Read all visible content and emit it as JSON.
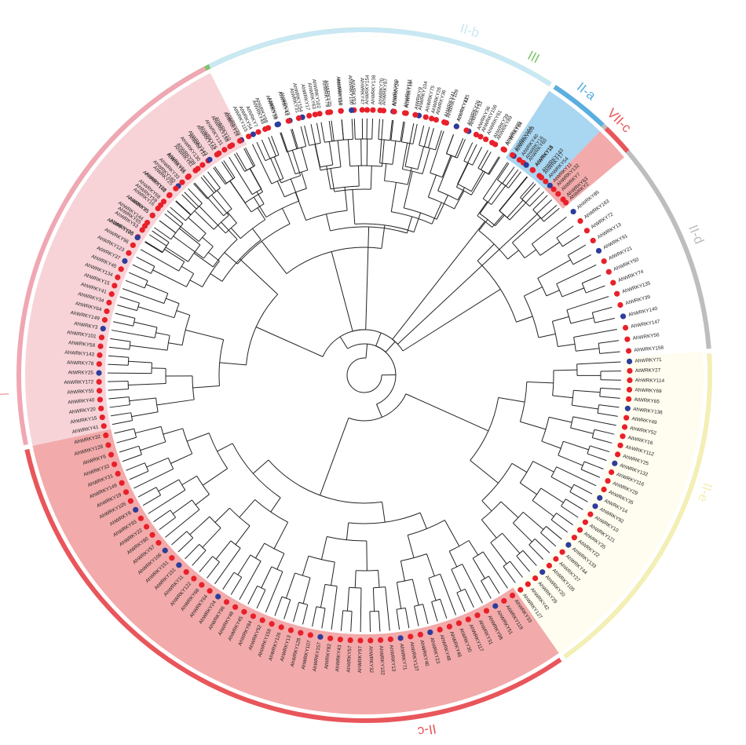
{
  "colors": {
    "species_marker_red": "#e8202a",
    "species_marker_blue": "#2d3d9a",
    "branch": "#222222"
  },
  "clades": [
    {
      "id": "III",
      "label": "III",
      "color": "#7dc46a",
      "fill": "#c9e6be",
      "leaves": [
        "AhWRKY96",
        "AhWRKY65",
        "AhWRKY35",
        "AhWRKY59",
        "AhWRKY162",
        "AhWRKY160",
        "AtWRKY55",
        "AhWRKY99",
        "AhWRKY12",
        "AhWRKY76",
        "AhWRKY158",
        "AtWRKY70",
        "AtWRKY54",
        "AtWRKY46",
        "AtWRKY38",
        "AhWRKY2",
        "AhWRKY154",
        "AhWRKY63",
        "AhWRKY79",
        "AhWRKY110",
        "AtWRKY53",
        "AhWRKY154",
        "AhWRKY70",
        "AhWRKY69",
        "AhWRKY19",
        "AhWRKY104",
        "AhWRKY26",
        "AhWRKY41",
        "AtWRKY41",
        "AhWRKY53",
        "AhWRKY156",
        "AhWRKY39",
        "AhWRKY85"
      ]
    },
    {
      "id": "II-d",
      "label": "II-d",
      "color": "#bdbdbd",
      "fill": "#ffffff",
      "leaves": [
        "AhWRKY103",
        "AhWRKY16",
        "AtWRKY15",
        "AhWRKY17",
        "AtWRKY11",
        "AhWRKY7",
        "AhWRKY2",
        "AhWRKY85",
        "AhWRKY163",
        "AtWRKY72",
        "AhWRKY13",
        "AhWRKY91",
        "AtWRKY21",
        "AhWRKY50",
        "AhWRKY74",
        "AhWRKY135",
        "AtWRKY39",
        "AhWRKY140",
        "AhWRKY147",
        "AhWRKY56",
        "AhWRKY158"
      ]
    },
    {
      "id": "II-e",
      "label": "II-e",
      "color": "#f3efb5",
      "fill": "#fffdf0",
      "leaves": [
        "AhWRKY71",
        "AtWRKY27",
        "AhWRKY114",
        "AhWRKY69",
        "AtWRKY65",
        "AhWRKY136",
        "AtWRKY49",
        "AhWRKY52",
        "AtWRKY16",
        "AhWRKY112",
        "AhWRKY25",
        "AhWRKY132",
        "AhWRKY116",
        "AhWRKY29",
        "AhWRKY35",
        "AtWRKY14",
        "AhWRKY92",
        "AhWRKY10",
        "AhWRKY121",
        "AtWRKY35",
        "AtWRKY22",
        "AhWRKY133",
        "AhWRKY44",
        "AhWRKY27",
        "AhWRKY105",
        "AhWRKY20",
        "AhWRKY29",
        "AhWRKY42",
        "AhWRKY127"
      ]
    },
    {
      "id": "II-c",
      "label": "II-c",
      "color": "#e8565b",
      "fill": "#f2aaaa",
      "leaves": [
        "AhWRKY33",
        "AtWRKY119",
        "AhWRKY51",
        "AhWRKY98",
        "AhWRKY31",
        "AhWRKY117",
        "AtWRKY30",
        "AhWRKY46",
        "AhWRKY48",
        "AhWRKY23",
        "AhWRKY40",
        "AhWRKY137",
        "AhWRKY71",
        "AhWRKY13",
        "AhWRKY102",
        "AhWRKY32",
        "AhWRKY97",
        "AhWRKY57",
        "AhWRKY43",
        "AtWRKY82",
        "AhWRKY157",
        "AhWRKY107",
        "AhWRKY128",
        "AhWRKY13",
        "AhWRKY126",
        "AhWRKY158",
        "AhWRKY52",
        "AhWRKY84",
        "AhWRKY45",
        "AhWRKY48",
        "AhWRKY96",
        "AhWRKY24",
        "AhWRKY64",
        "AhWRKY68",
        "AhWRKY122",
        "AhWRKY11",
        "AtWRKY151",
        "AhWRKY151",
        "AhWRKY106",
        "AhWRKY57",
        "AtWRKY80",
        "AhWRKY22",
        "AhWRKY93",
        "AhWRKY8",
        "AhWRKY105",
        "AhWRKY19",
        "AhWRKY149",
        "AhWRKY31",
        "AhWRKY33",
        "AhWRKY6",
        "AhWRKY128",
        "AhWRKY32"
      ]
    },
    {
      "id": "I",
      "label": "I",
      "color": "#f0a7b3",
      "fill": "#f7d3d8",
      "leaves": [
        "AhWRKY41",
        "AhWRKY15",
        "AhWRKY20",
        "AhWRKY40",
        "AhWRKY55",
        "AhWRKY172",
        "AtWRKY25",
        "AhWRKY78",
        "AhWRKY143",
        "AhWRKY58",
        "AhWRKY101",
        "AhWRKY3",
        "AhWRKY149",
        "AhWRKY64",
        "AhWRKY34",
        "AhWRKY41",
        "AhWRKY15",
        "AhWRKY134",
        "AhWRKY45",
        "AtWRKY37",
        "AhWRKY123",
        "AhWRKY96",
        "AhWRKY100",
        "AhWRKY53",
        "AhWRKY144",
        "AhWRKY5",
        "AtWRKY16",
        "AhWRKY68",
        "AhWRKY26",
        "AtWRKY25",
        "AhWRKY33",
        "AtWRKY51",
        "AhWRKY81",
        "AhWRKY130",
        "AhWRKY142",
        "AhWRKY162",
        "AhWRKY131",
        "AhWRKY10",
        "AhWRKY28"
      ]
    },
    {
      "id": "II-b",
      "label": "II-b",
      "color": "#c9e8f4",
      "fill": "#ffffff",
      "leaves": [
        "AtWRKY115",
        "AtWRKY7",
        "AhWRKY88",
        "AtWRKY6",
        "AtWRKY42",
        "AtWRKY31",
        "AhWRKY17",
        "AhWRKY102",
        "AhWRKY70",
        "AhWRKY59",
        "AhWRKY150",
        "AhWRKY47",
        "AhWRKY138",
        "AhWRKY87",
        "AtWRKY24",
        "AhWRKY111",
        "AtWRKY9",
        "AhWRKY75",
        "AtWRKY36",
        "AhWRKY109",
        "AtWRKY125",
        "AhWRKY26",
        "AtWRKY36",
        "AhWRKY61",
        "AhWRKY89",
        "AhWRKY84"
      ]
    },
    {
      "id": "II-a",
      "label": "II-a",
      "color": "#5aaee0",
      "fill": "#a9d6f0",
      "leaves": [
        "AtWRKY164",
        "AtWRKY40",
        "AhWRKY60",
        "AtWRKY18",
        "AhWRKY143",
        "AhWRKY54"
      ]
    },
    {
      "id": "VII-c",
      "label": "VII-c",
      "color": "#e8565b",
      "fill": "#f2aaaa",
      "leaves": [
        "AhWRKY132",
        "AhWRKY63"
      ]
    }
  ],
  "markers": "RRBRRBRRRRRBBRBBBRRRRRRBRBRRRBRRRBRRRBRRBRRRBRRRRRBRRRBRRRRBRRRRRBRRRBBRRRRBRRRBRRRRRBRRRRRRBRRBRRRRRRRBRRRRRRRRRRBRRRRBRBRRRRBRRRRRRRRRRRRRRBRRRRBRRRRRRRBRRBRRRRRRRRRRRBRRRRRRRBRRRRRRBRRRRRRRRRBRRRRRRRBRRRRRRRRRRBRRRRR"
}
